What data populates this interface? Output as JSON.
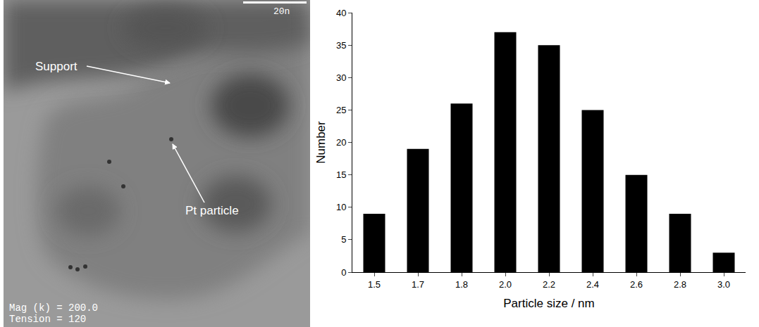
{
  "chart_data": {
    "type": "bar",
    "categories": [
      "1.5",
      "1.7",
      "1.8",
      "2.0",
      "2.2",
      "2.4",
      "2.6",
      "2.8",
      "3.0"
    ],
    "values": [
      9,
      19,
      26,
      37,
      35,
      25,
      15,
      9,
      3
    ],
    "color": "#000000",
    "x_label": "Particle size / nm",
    "y_label": "Number",
    "ylim": [
      0,
      40
    ],
    "yticks": [
      0,
      5,
      10,
      15,
      20,
      25,
      30,
      35,
      40
    ],
    "grid": false
  },
  "image": {
    "labels": [
      "Support",
      "Pt particle"
    ],
    "info_lines": [
      "Mag (k) = 200.0",
      "Tension = 120"
    ],
    "scale_bar": "20n"
  }
}
